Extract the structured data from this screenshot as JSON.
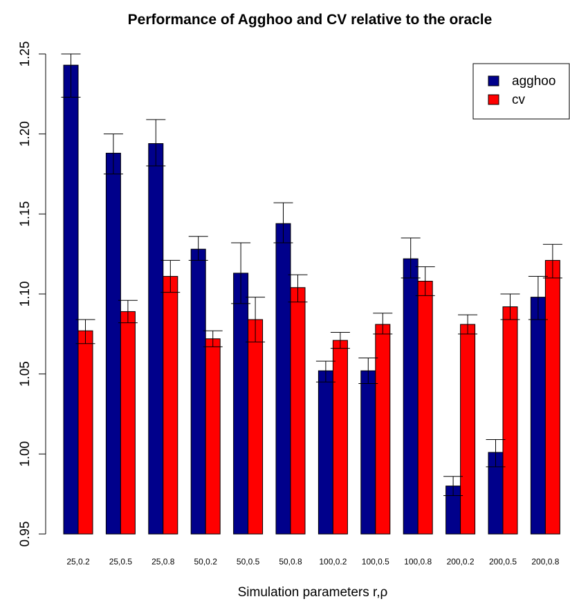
{
  "chart_data": {
    "type": "bar",
    "title": "Performance of Agghoo and CV relative to the oracle",
    "xlabel": "Simulation parameters r,ρ",
    "ylabel": "",
    "ylim": [
      0.95,
      1.25
    ],
    "yticks": [
      "0.95",
      "1.00",
      "1.05",
      "1.10",
      "1.15",
      "1.20",
      "1.25"
    ],
    "categories": [
      "25,0.2",
      "25,0.5",
      "25,0.8",
      "50,0.2",
      "50,0.5",
      "50,0.8",
      "100,0.2",
      "100,0.5",
      "100,0.8",
      "200,0.2",
      "200,0.5",
      "200,0.8"
    ],
    "legend_position": "top-right",
    "grid": false,
    "series": [
      {
        "name": "agghoo",
        "color": "#00008B",
        "values": [
          1.243,
          1.188,
          1.194,
          1.128,
          1.113,
          1.144,
          1.052,
          1.052,
          1.122,
          0.98,
          1.001,
          1.098
        ],
        "err_low": [
          1.223,
          1.175,
          1.18,
          1.121,
          1.094,
          1.132,
          1.045,
          1.044,
          1.11,
          0.974,
          0.992,
          1.084
        ],
        "err_high": [
          1.25,
          1.2,
          1.209,
          1.136,
          1.132,
          1.157,
          1.058,
          1.06,
          1.135,
          0.986,
          1.009,
          1.111
        ]
      },
      {
        "name": "cv",
        "color": "#FF0000",
        "values": [
          1.077,
          1.089,
          1.111,
          1.072,
          1.084,
          1.104,
          1.071,
          1.081,
          1.108,
          1.081,
          1.092,
          1.121
        ],
        "err_low": [
          1.069,
          1.082,
          1.101,
          1.067,
          1.07,
          1.095,
          1.066,
          1.075,
          1.099,
          1.075,
          1.084,
          1.11
        ],
        "err_high": [
          1.084,
          1.096,
          1.121,
          1.077,
          1.098,
          1.112,
          1.076,
          1.088,
          1.117,
          1.087,
          1.1,
          1.131
        ]
      }
    ]
  }
}
